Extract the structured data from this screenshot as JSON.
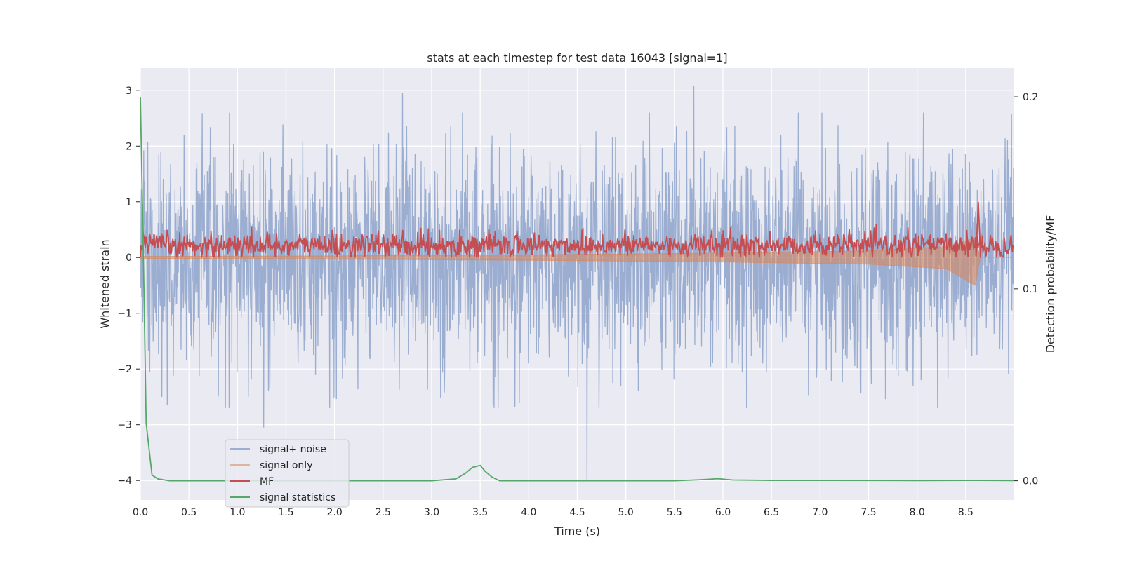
{
  "chart_data": {
    "type": "line",
    "title": "stats at each timestep for test data 16043 [signal=1]",
    "xlabel": "Time (s)",
    "ylabel": "Whitened strain",
    "y2label": "Detection probability/MF",
    "xlim": [
      0.0,
      9.0
    ],
    "ylim": [
      -4.35,
      3.4
    ],
    "y2lim": [
      -0.01,
      0.215
    ],
    "x_ticks": [
      "0.0",
      "0.5",
      "1.0",
      "1.5",
      "2.0",
      "2.5",
      "3.0",
      "3.5",
      "4.0",
      "4.5",
      "5.0",
      "5.5",
      "6.0",
      "6.5",
      "7.0",
      "7.5",
      "8.0",
      "8.5"
    ],
    "y_ticks": [
      "3",
      "2",
      "1",
      "0",
      "−1",
      "−2",
      "−3",
      "−4"
    ],
    "y2_ticks": [
      "0.2",
      "0.1",
      "0.0"
    ],
    "grid": true,
    "legend_position": "lower-left",
    "colors": {
      "background": "#eaeaf2",
      "grid": "#ffffff",
      "signal_noise": "#4c72b0",
      "signal_only": "#dd8452",
      "mf": "#c44e52",
      "signal_statistics": "#55a868"
    },
    "series": [
      {
        "name": "signal+ noise",
        "axis": "left",
        "description_values": {
          "amplitude_typical": 1.0,
          "range": [
            -4.0,
            3.1
          ]
        },
        "notable_points": [
          {
            "x": 1.27,
            "y": -3.05
          },
          {
            "x": 2.7,
            "y": 2.95
          },
          {
            "x": 4.6,
            "y": -4.0
          },
          {
            "x": 5.7,
            "y": 3.08
          }
        ]
      },
      {
        "name": "signal only",
        "axis": "left",
        "envelope": [
          {
            "x": 0.0,
            "upper": 0.02,
            "lower": -0.02
          },
          {
            "x": 2.0,
            "upper": 0.03,
            "lower": -0.03
          },
          {
            "x": 4.0,
            "upper": 0.05,
            "lower": -0.05
          },
          {
            "x": 6.0,
            "upper": 0.08,
            "lower": -0.08
          },
          {
            "x": 7.5,
            "upper": 0.12,
            "lower": -0.12
          },
          {
            "x": 8.3,
            "upper": 0.2,
            "lower": -0.2
          },
          {
            "x": 8.6,
            "upper": 0.35,
            "lower": -0.5
          },
          {
            "x": 8.65,
            "upper": 0.0,
            "lower": 0.0
          },
          {
            "x": 9.0,
            "upper": 0.0,
            "lower": 0.0
          }
        ]
      },
      {
        "name": "MF",
        "axis": "left",
        "baseline_range": [
          0.0,
          0.6
        ],
        "notable_points": [
          {
            "x": 8.63,
            "y": 1.0
          }
        ]
      },
      {
        "name": "signal statistics",
        "axis": "right",
        "x": [
          0.0,
          0.03,
          0.06,
          0.12,
          0.18,
          0.3,
          0.5,
          1.0,
          2.0,
          3.0,
          3.25,
          3.35,
          3.42,
          3.5,
          3.55,
          3.62,
          3.7,
          4.0,
          5.0,
          5.5,
          5.75,
          5.95,
          6.1,
          6.5,
          7.0,
          8.0,
          8.5,
          9.0
        ],
        "values": [
          0.2,
          0.12,
          0.03,
          0.003,
          0.001,
          0.0,
          0.0,
          0.0,
          0.0,
          0.0,
          0.001,
          0.004,
          0.007,
          0.008,
          0.005,
          0.002,
          0.0,
          0.0,
          0.0,
          0.0,
          0.0005,
          0.0011,
          0.0004,
          0.0002,
          0.0002,
          0.0001,
          0.0002,
          0.0001
        ]
      }
    ]
  }
}
